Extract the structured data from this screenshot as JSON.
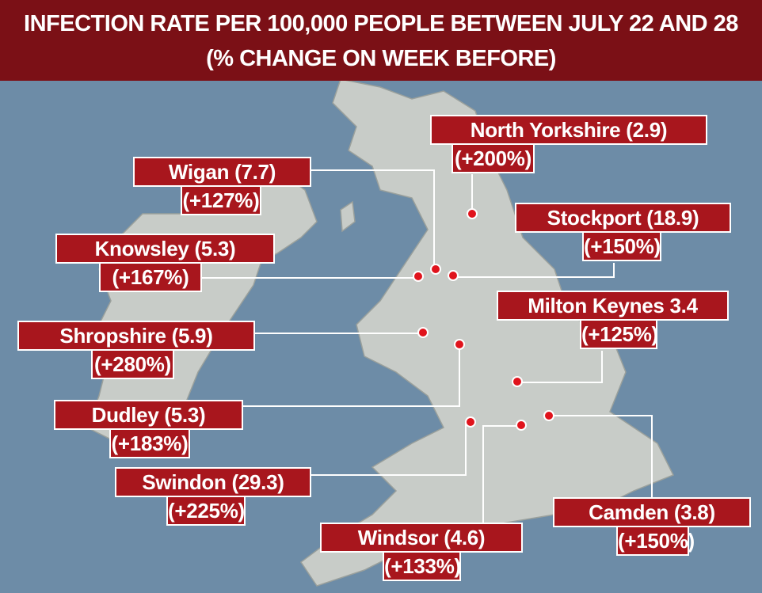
{
  "title": {
    "line1": "INFECTION RATE PER 100,000 PEOPLE BETWEEN JULY 22 AND 28",
    "line2": "(% CHANGE ON WEEK BEFORE)"
  },
  "labels": [
    {
      "name": "North Yorkshire (2.9)",
      "change": "(+200%)"
    },
    {
      "name": "Wigan (7.7)",
      "change": "(+127%)"
    },
    {
      "name": "Stockport (18.9)",
      "change": "(+150%)"
    },
    {
      "name": "Knowsley (5.3)",
      "change": "(+167%)"
    },
    {
      "name": "Milton Keynes 3.4",
      "change": "(+125%)"
    },
    {
      "name": "Shropshire (5.9)",
      "change": "(+280%)"
    },
    {
      "name": "Dudley (5.3)",
      "change": "(+183%)"
    },
    {
      "name": "Swindon (29.3)",
      "change": "(+225%)"
    },
    {
      "name": "Windsor (4.6)",
      "change": "(+133%)"
    },
    {
      "name": "Camden (3.8)",
      "change": "(+150%)"
    }
  ]
}
